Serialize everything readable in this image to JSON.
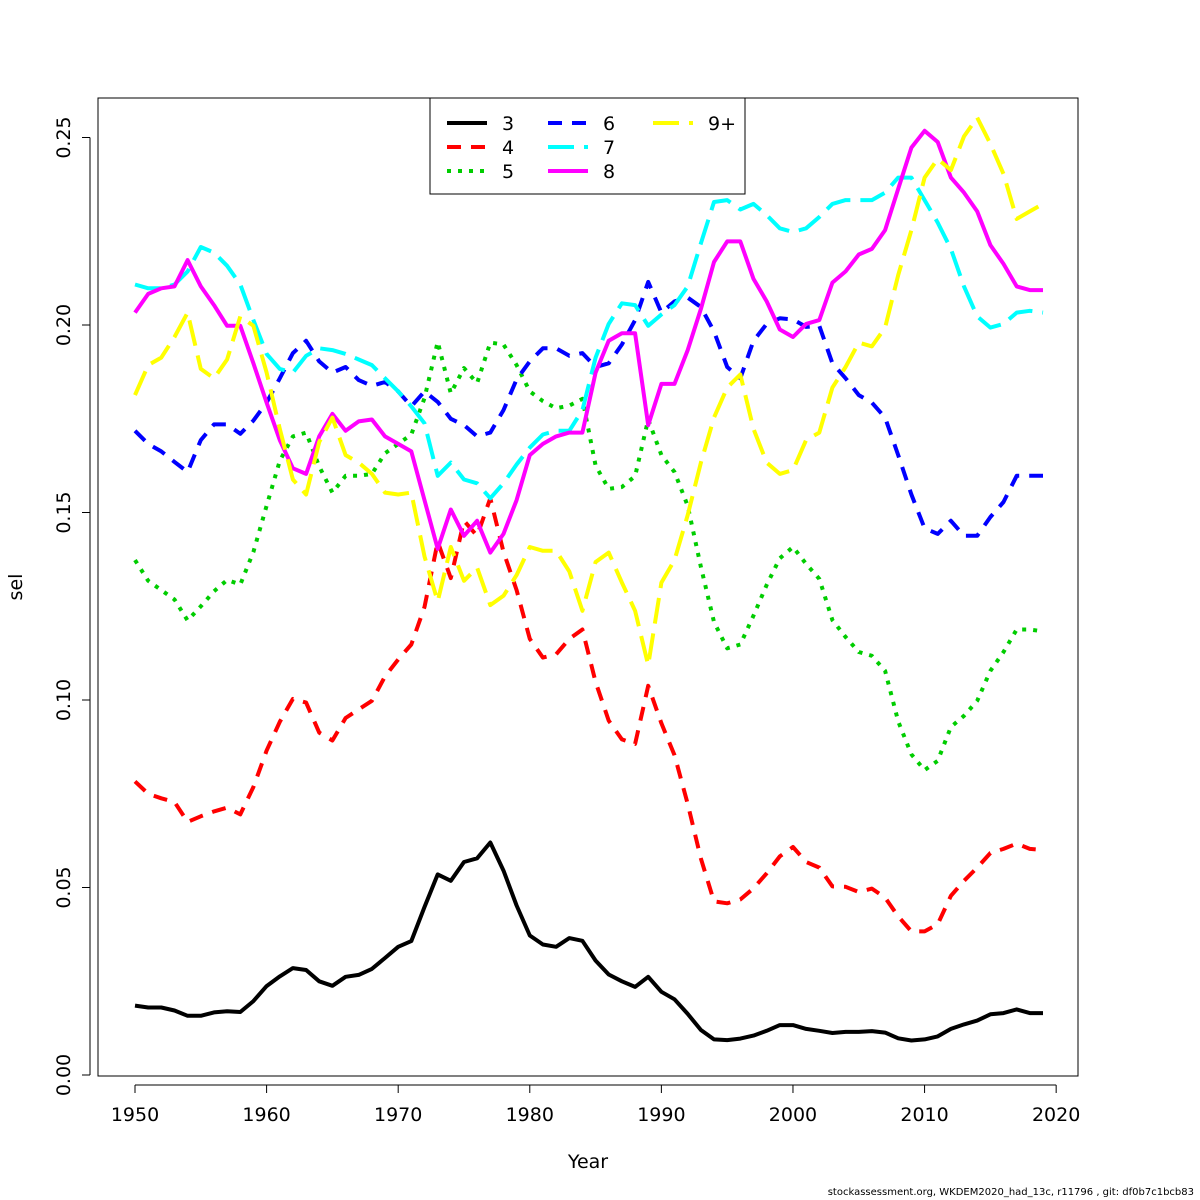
{
  "footer_text": "stockassessment.org, WKDEM2020_had_13c, r11796 , git: df0b7c1bcb83",
  "chart_data": {
    "type": "line",
    "title": "",
    "xlabel": "Year",
    "ylabel": "sel",
    "xlim": [
      1950,
      2019
    ],
    "ylim": [
      0,
      0.26
    ],
    "x_ticks": [
      1950,
      1960,
      1970,
      1980,
      1990,
      2000,
      2010,
      2020
    ],
    "x_tick_labels": [
      "1950",
      "1960",
      "1970",
      "1980",
      "1990",
      "2000",
      "2010",
      "2020"
    ],
    "y_ticks": [
      0,
      0.05,
      0.1,
      0.15,
      0.2,
      0.25
    ],
    "y_tick_labels": [
      "0.00",
      "0.05",
      "0.10",
      "0.15",
      "0.20",
      "0.25"
    ],
    "grid": false,
    "legend_position": "top-center",
    "x_start": 1950,
    "series": [
      {
        "name": "3",
        "color": "#000000",
        "dash": "solid",
        "values": [
          0.0185,
          0.018,
          0.018,
          0.0172,
          0.0158,
          0.0158,
          0.0167,
          0.017,
          0.0168,
          0.0197,
          0.0237,
          0.0263,
          0.0285,
          0.028,
          0.025,
          0.0238,
          0.0262,
          0.0267,
          0.0283,
          0.0312,
          0.0342,
          0.0357,
          0.0448,
          0.0535,
          0.0518,
          0.0568,
          0.0578,
          0.062,
          0.0545,
          0.0452,
          0.0372,
          0.0348,
          0.0342,
          0.0365,
          0.0358,
          0.0305,
          0.0268,
          0.025,
          0.0235,
          0.0262,
          0.0222,
          0.0202,
          0.0163,
          0.012,
          0.0095,
          0.0093,
          0.0097,
          0.0105,
          0.0118,
          0.0133,
          0.0133,
          0.0123,
          0.0118,
          0.0112,
          0.0115,
          0.0115,
          0.0117,
          0.0113,
          0.0098,
          0.0092,
          0.0095,
          0.0103,
          0.0123,
          0.0135,
          0.0145,
          0.0162,
          0.0165,
          0.0175,
          0.0165,
          0.0165
        ]
      },
      {
        "name": "4",
        "color": "#ff0000",
        "dash": "dash",
        "values": [
          0.0783,
          0.075,
          0.0738,
          0.0728,
          0.0675,
          0.069,
          0.0703,
          0.0713,
          0.0695,
          0.0768,
          0.0865,
          0.0942,
          0.1003,
          0.0993,
          0.0913,
          0.0892,
          0.0952,
          0.0975,
          0.0998,
          0.1063,
          0.1108,
          0.1148,
          0.1248,
          0.1422,
          0.1325,
          0.1478,
          0.1438,
          0.1538,
          0.1395,
          0.1293,
          0.1163,
          0.1113,
          0.1122,
          0.1163,
          0.1188,
          0.1048,
          0.0945,
          0.0895,
          0.0883,
          0.1038,
          0.0938,
          0.0853,
          0.0723,
          0.0577,
          0.0463,
          0.0458,
          0.0468,
          0.0498,
          0.0538,
          0.0583,
          0.0608,
          0.0568,
          0.0553,
          0.0503,
          0.0502,
          0.0488,
          0.0497,
          0.0473,
          0.0423,
          0.0383,
          0.0383,
          0.0402,
          0.0478,
          0.0518,
          0.0553,
          0.0592,
          0.0603,
          0.0617,
          0.0603,
          0.06
        ]
      },
      {
        "name": "5",
        "color": "#00cd00",
        "dash": "dot",
        "values": [
          0.1373,
          0.1318,
          0.1293,
          0.1268,
          0.1212,
          0.125,
          0.129,
          0.132,
          0.1308,
          0.1395,
          0.1518,
          0.1638,
          0.1703,
          0.1713,
          0.1623,
          0.1553,
          0.1598,
          0.1598,
          0.1603,
          0.1658,
          0.1683,
          0.1708,
          0.1805,
          0.1955,
          0.1818,
          0.1885,
          0.1845,
          0.1953,
          0.1948,
          0.1893,
          0.1823,
          0.1797,
          0.1778,
          0.1785,
          0.1803,
          0.1625,
          0.1563,
          0.1568,
          0.1597,
          0.1748,
          0.1653,
          0.1608,
          0.1518,
          0.1355,
          0.1208,
          0.1138,
          0.1148,
          0.1225,
          0.1307,
          0.1378,
          0.1408,
          0.1363,
          0.1323,
          0.1213,
          0.1168,
          0.1128,
          0.1118,
          0.1078,
          0.0943,
          0.0855,
          0.0813,
          0.0838,
          0.0928,
          0.0958,
          0.0998,
          0.1078,
          0.1128,
          0.1188,
          0.1188,
          0.1183
        ]
      },
      {
        "name": "6",
        "color": "#0000ff",
        "dash": "dash",
        "values": [
          0.1718,
          0.1683,
          0.1663,
          0.1635,
          0.1608,
          0.1693,
          0.1735,
          0.1735,
          0.171,
          0.1745,
          0.1793,
          0.1858,
          0.1925,
          0.1958,
          0.1903,
          0.1873,
          0.1888,
          0.1853,
          0.1838,
          0.1848,
          0.1823,
          0.1783,
          0.1823,
          0.1795,
          0.175,
          0.1733,
          0.1703,
          0.1713,
          0.1773,
          0.1855,
          0.1903,
          0.1938,
          0.1938,
          0.1918,
          0.1925,
          0.1888,
          0.1898,
          0.1948,
          0.2013,
          0.2115,
          0.2033,
          0.2063,
          0.2073,
          0.2048,
          0.1983,
          0.1888,
          0.1858,
          0.1958,
          0.2003,
          0.2018,
          0.2015,
          0.1995,
          0.1998,
          0.1898,
          0.1858,
          0.1813,
          0.1793,
          0.1753,
          0.1653,
          0.1548,
          0.1458,
          0.1443,
          0.1478,
          0.1438,
          0.1438,
          0.1488,
          0.1528,
          0.1598,
          0.1598,
          0.1598
        ]
      },
      {
        "name": "7",
        "color": "#00ffff",
        "dash": "longdash",
        "values": [
          0.2108,
          0.2098,
          0.2098,
          0.2108,
          0.2143,
          0.2208,
          0.2193,
          0.2158,
          0.2108,
          0.2013,
          0.1923,
          0.1883,
          0.1873,
          0.1918,
          0.1938,
          0.1933,
          0.1923,
          0.1908,
          0.1893,
          0.1858,
          0.1823,
          0.1783,
          0.1738,
          0.1598,
          0.1633,
          0.1588,
          0.1578,
          0.1538,
          0.1578,
          0.1628,
          0.1673,
          0.1708,
          0.1718,
          0.1718,
          0.1773,
          0.1913,
          0.2003,
          0.2058,
          0.2053,
          0.1998,
          0.2028,
          0.2053,
          0.2103,
          0.2218,
          0.2328,
          0.2333,
          0.2308,
          0.2323,
          0.2293,
          0.2258,
          0.2248,
          0.2258,
          0.2288,
          0.2323,
          0.2333,
          0.2333,
          0.2333,
          0.2353,
          0.2393,
          0.2393,
          0.2333,
          0.2273,
          0.2203,
          0.2103,
          0.2023,
          0.1993,
          0.2003,
          0.2033,
          0.2038,
          0.2033
        ]
      },
      {
        "name": "8",
        "color": "#ff00ff",
        "dash": "solid",
        "values": [
          0.2033,
          0.2083,
          0.2098,
          0.2103,
          0.2173,
          0.2103,
          0.2053,
          0.1998,
          0.1998,
          0.1898,
          0.1793,
          0.1693,
          0.1618,
          0.1603,
          0.1703,
          0.1763,
          0.1718,
          0.1743,
          0.1748,
          0.1703,
          0.1683,
          0.1663,
          0.1533,
          0.1403,
          0.1508,
          0.1438,
          0.1478,
          0.1393,
          0.1443,
          0.1533,
          0.1653,
          0.1683,
          0.1703,
          0.1713,
          0.1713,
          0.1873,
          0.1958,
          0.1978,
          0.1978,
          0.1733,
          0.1843,
          0.1843,
          0.1933,
          0.2043,
          0.2168,
          0.2223,
          0.2223,
          0.2123,
          0.2063,
          0.1988,
          0.1968,
          0.2003,
          0.2013,
          0.2113,
          0.2143,
          0.2188,
          0.2203,
          0.2253,
          0.2363,
          0.2473,
          0.2518,
          0.2488,
          0.2393,
          0.2353,
          0.2303,
          0.2213,
          0.2163,
          0.2103,
          0.2093,
          0.2093
        ]
      },
      {
        "name": "9+",
        "color": "#ffff00",
        "dash": "longdash",
        "values": [
          0.1813,
          0.1893,
          0.1913,
          0.1968,
          0.2033,
          0.1883,
          0.1858,
          0.1908,
          0.2023,
          0.1998,
          0.1873,
          0.1723,
          0.1588,
          0.1548,
          0.1688,
          0.1753,
          0.1653,
          0.1633,
          0.1603,
          0.1553,
          0.1548,
          0.1553,
          0.1383,
          0.1263,
          0.1408,
          0.1318,
          0.1353,
          0.1253,
          0.1278,
          0.1333,
          0.1408,
          0.1398,
          0.1398,
          0.1343,
          0.1238,
          0.1368,
          0.1393,
          0.1313,
          0.1238,
          0.1093,
          0.1313,
          0.1373,
          0.1493,
          0.1633,
          0.1753,
          0.1833,
          0.1868,
          0.1723,
          0.1633,
          0.1603,
          0.1613,
          0.1693,
          0.1713,
          0.1833,
          0.1888,
          0.1953,
          0.1943,
          0.1993,
          0.2133,
          0.2253,
          0.2393,
          0.2443,
          0.2413,
          0.2503,
          0.2553,
          0.2483,
          0.2403,
          0.2283,
          0.2303,
          0.2323
        ]
      }
    ]
  }
}
